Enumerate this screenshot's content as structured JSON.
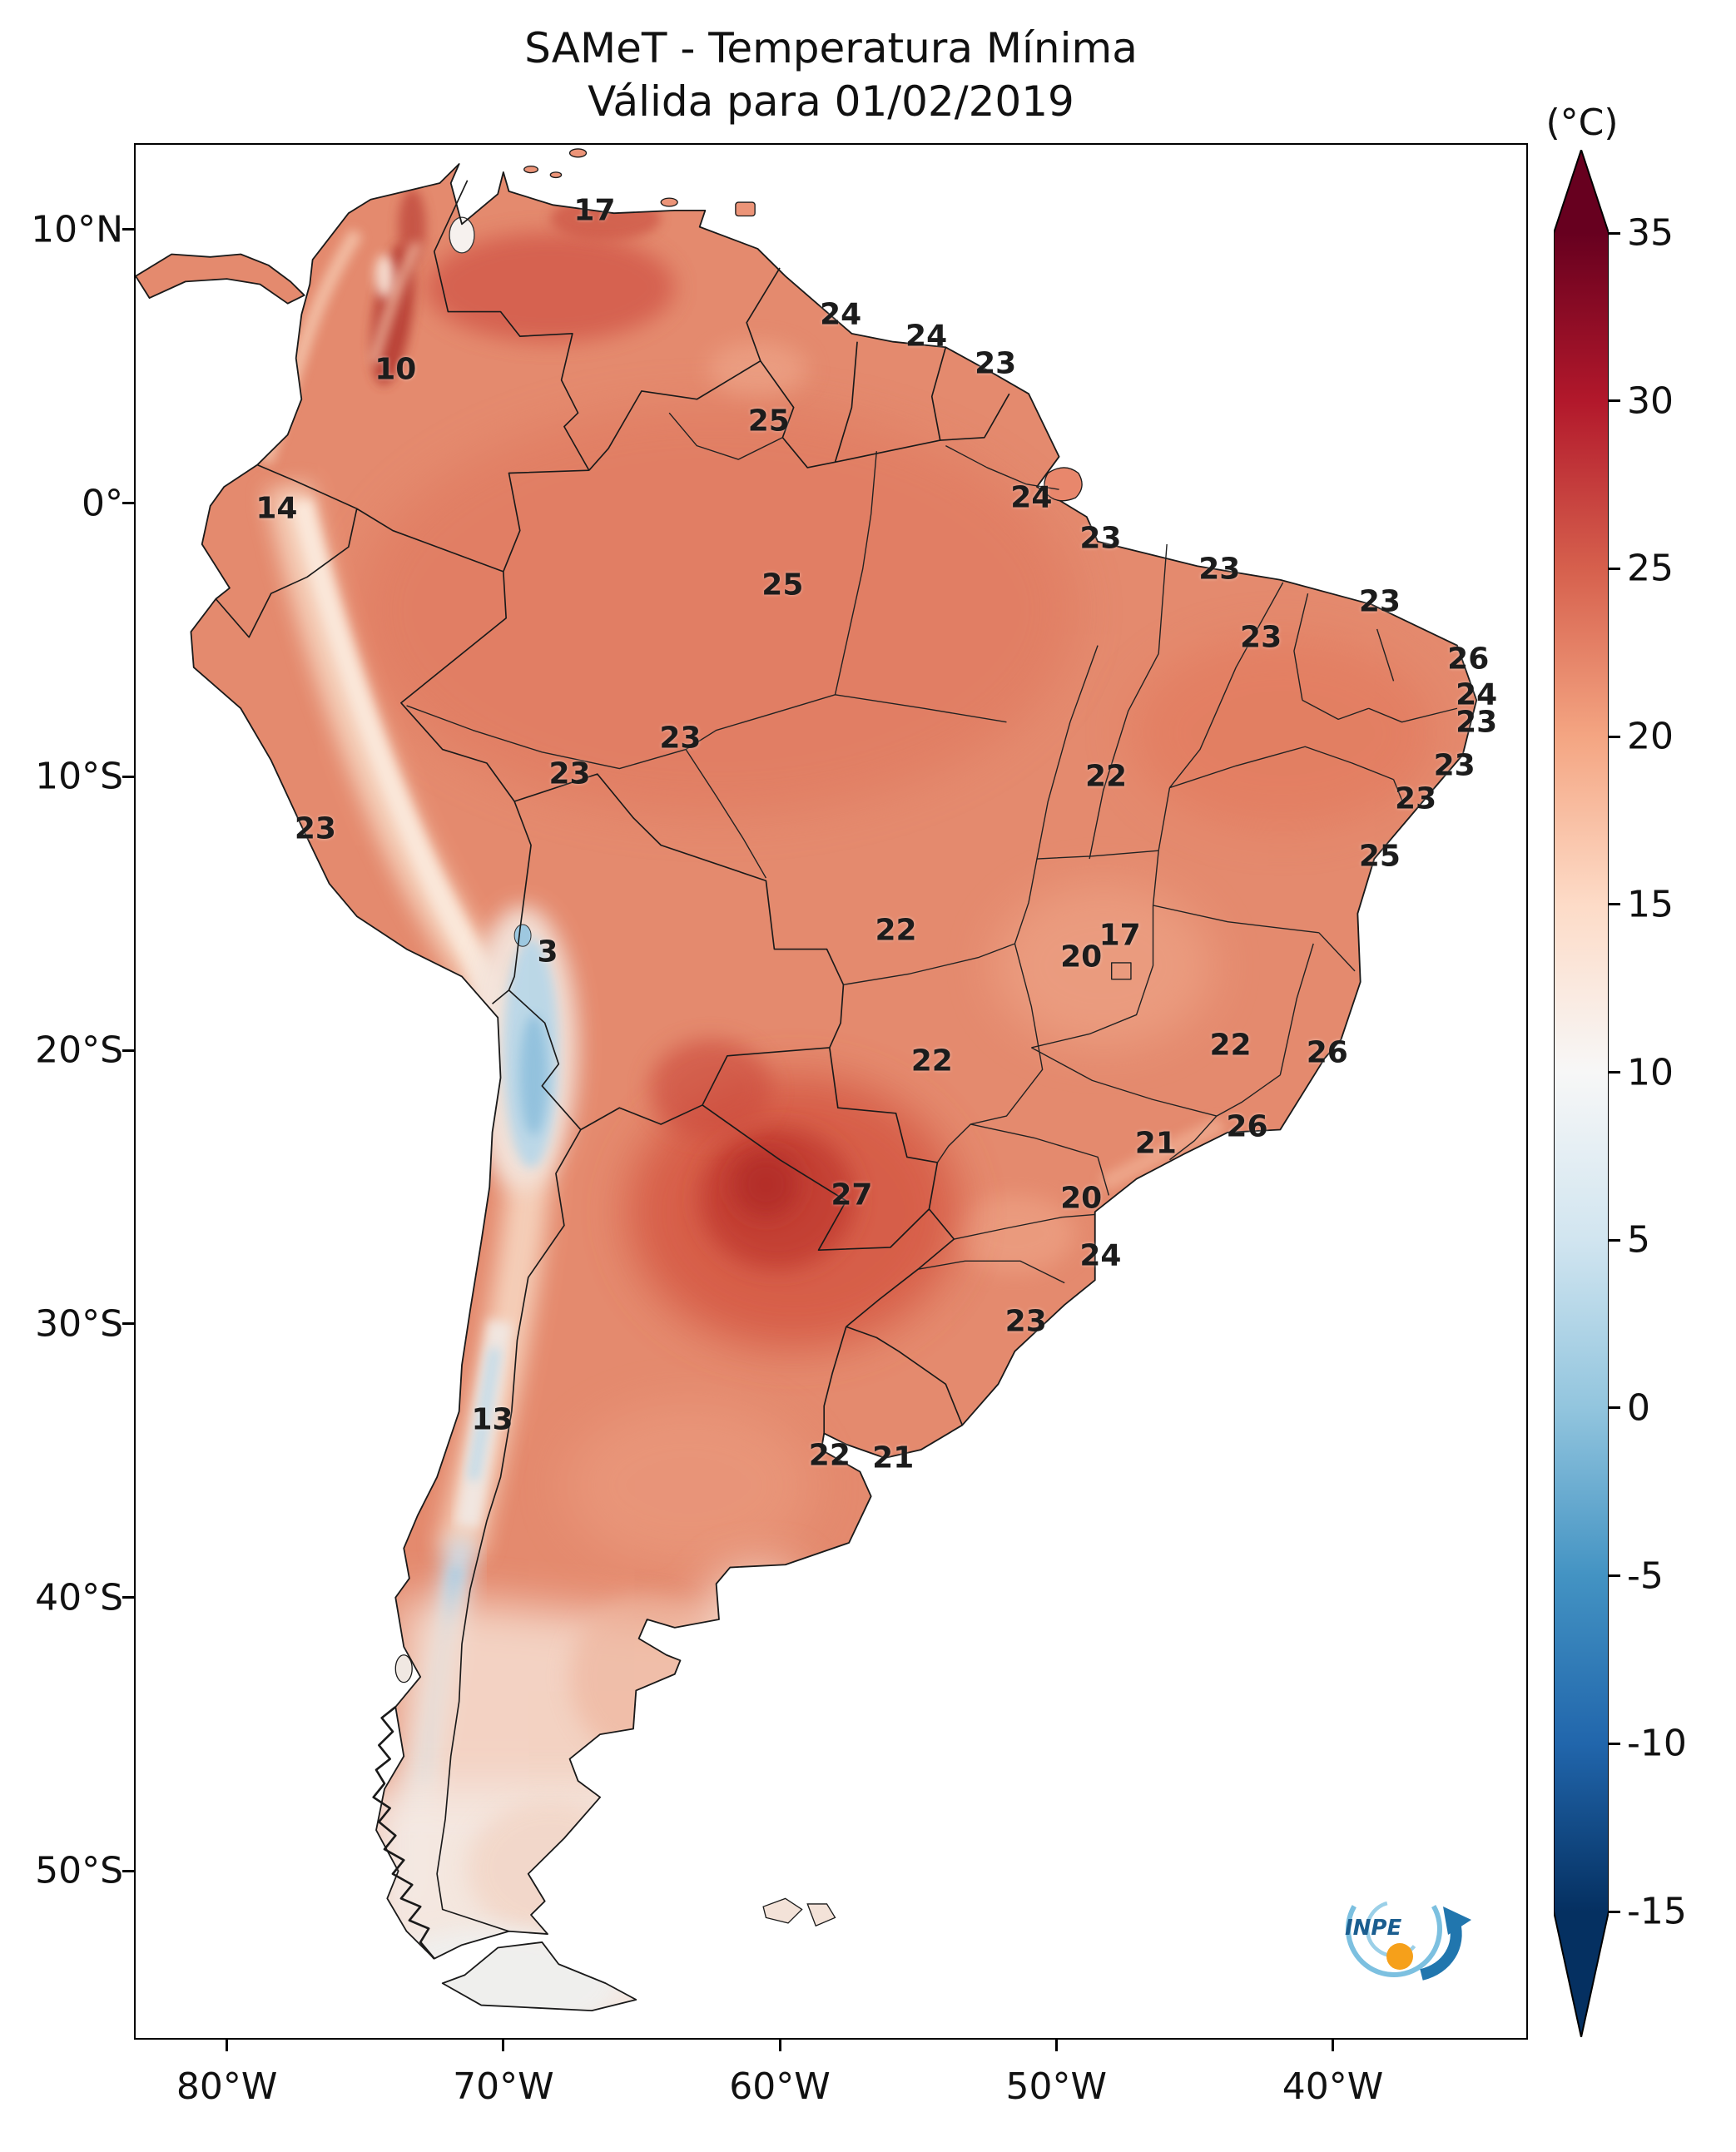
{
  "title": {
    "line1": "SAMeT - Temperatura Mínima",
    "line2": "Válida para 01/02/2019"
  },
  "colorbar": {
    "unit": "(°C)",
    "ticks": [
      {
        "label": "35",
        "value": 35,
        "color": "#67001f"
      },
      {
        "label": "30",
        "value": 30,
        "color": "#b2182b"
      },
      {
        "label": "25",
        "value": 25,
        "color": "#d6604d"
      },
      {
        "label": "20",
        "value": 20,
        "color": "#f4a582"
      },
      {
        "label": "15",
        "value": 15,
        "color": "#fddbc7"
      },
      {
        "label": "10",
        "value": 10,
        "color": "#f7f7f7"
      },
      {
        "label": "5",
        "value": 5,
        "color": "#d1e5f0"
      },
      {
        "label": "0",
        "value": 0,
        "color": "#92c5de"
      },
      {
        "label": "-5",
        "value": -5,
        "color": "#4393c3"
      },
      {
        "label": "-10",
        "value": -10,
        "color": "#2166ac"
      },
      {
        "label": "-15",
        "value": -15,
        "color": "#053061"
      }
    ]
  },
  "axes": {
    "lat_ticks": [
      {
        "label": "10°N",
        "deg": 10
      },
      {
        "label": "0°",
        "deg": 0
      },
      {
        "label": "10°S",
        "deg": -10
      },
      {
        "label": "20°S",
        "deg": -20
      },
      {
        "label": "30°S",
        "deg": -30
      },
      {
        "label": "40°S",
        "deg": -40
      },
      {
        "label": "50°S",
        "deg": -50
      }
    ],
    "lon_ticks": [
      {
        "label": "80°W",
        "deg": -80
      },
      {
        "label": "70°W",
        "deg": -70
      },
      {
        "label": "60°W",
        "deg": -60
      },
      {
        "label": "50°W",
        "deg": -50
      },
      {
        "label": "40°W",
        "deg": -40
      }
    ]
  },
  "logo": {
    "text": "INPE"
  },
  "chart_data": {
    "type": "heatmap",
    "title": "SAMeT - Temperatura Mínima",
    "subtitle": "Válida para 01/02/2019",
    "units": "°C",
    "value_range": [
      -15,
      35
    ],
    "legend_position": "right",
    "lat_axis": [
      "10°N",
      "0°",
      "10°S",
      "20°S",
      "30°S",
      "40°S",
      "50°S"
    ],
    "lon_axis": [
      "80°W",
      "70°W",
      "60°W",
      "50°W",
      "40°W"
    ],
    "points": [
      {
        "value": 17,
        "lon": -66.7,
        "lat": 10.7
      },
      {
        "value": 24,
        "lon": -57.8,
        "lat": 6.9
      },
      {
        "value": 24,
        "lon": -54.7,
        "lat": 6.1
      },
      {
        "value": 23,
        "lon": -52.2,
        "lat": 5.1
      },
      {
        "value": 10,
        "lon": -73.9,
        "lat": 4.9
      },
      {
        "value": 25,
        "lon": -60.4,
        "lat": 3.0
      },
      {
        "value": 14,
        "lon": -78.2,
        "lat": -0.2
      },
      {
        "value": 24,
        "lon": -50.9,
        "lat": 0.2
      },
      {
        "value": 23,
        "lon": -48.4,
        "lat": -1.3
      },
      {
        "value": 23,
        "lon": -44.1,
        "lat": -2.4
      },
      {
        "value": 25,
        "lon": -59.9,
        "lat": -3.0
      },
      {
        "value": 23,
        "lon": -38.3,
        "lat": -3.6
      },
      {
        "value": 23,
        "lon": -42.6,
        "lat": -4.9
      },
      {
        "value": 26,
        "lon": -35.1,
        "lat": -5.7
      },
      {
        "value": 24,
        "lon": -34.8,
        "lat": -7.0
      },
      {
        "value": 23,
        "lon": -34.8,
        "lat": -8.0
      },
      {
        "value": 23,
        "lon": -35.6,
        "lat": -9.6
      },
      {
        "value": 23,
        "lon": -63.6,
        "lat": -8.6
      },
      {
        "value": 23,
        "lon": -67.6,
        "lat": -9.9
      },
      {
        "value": 22,
        "lon": -48.2,
        "lat": -10.0
      },
      {
        "value": 23,
        "lon": -37.0,
        "lat": -10.8
      },
      {
        "value": 23,
        "lon": -76.8,
        "lat": -11.9
      },
      {
        "value": 25,
        "lon": -38.3,
        "lat": -12.9
      },
      {
        "value": 3,
        "lon": -68.4,
        "lat": -16.4
      },
      {
        "value": 22,
        "lon": -55.8,
        "lat": -15.6
      },
      {
        "value": 17,
        "lon": -47.7,
        "lat": -15.8
      },
      {
        "value": 20,
        "lon": -49.1,
        "lat": -16.6
      },
      {
        "value": 22,
        "lon": -43.7,
        "lat": -19.8
      },
      {
        "value": 22,
        "lon": -54.5,
        "lat": -20.4
      },
      {
        "value": 26,
        "lon": -40.2,
        "lat": -20.1
      },
      {
        "value": 26,
        "lon": -43.1,
        "lat": -22.8
      },
      {
        "value": 21,
        "lon": -46.4,
        "lat": -23.4
      },
      {
        "value": 27,
        "lon": -57.4,
        "lat": -25.3
      },
      {
        "value": 20,
        "lon": -49.1,
        "lat": -25.4
      },
      {
        "value": 24,
        "lon": -48.4,
        "lat": -27.5
      },
      {
        "value": 23,
        "lon": -51.1,
        "lat": -29.9
      },
      {
        "value": 13,
        "lon": -70.4,
        "lat": -33.5
      },
      {
        "value": 22,
        "lon": -58.2,
        "lat": -34.8
      },
      {
        "value": 21,
        "lon": -55.9,
        "lat": -34.9
      }
    ]
  }
}
